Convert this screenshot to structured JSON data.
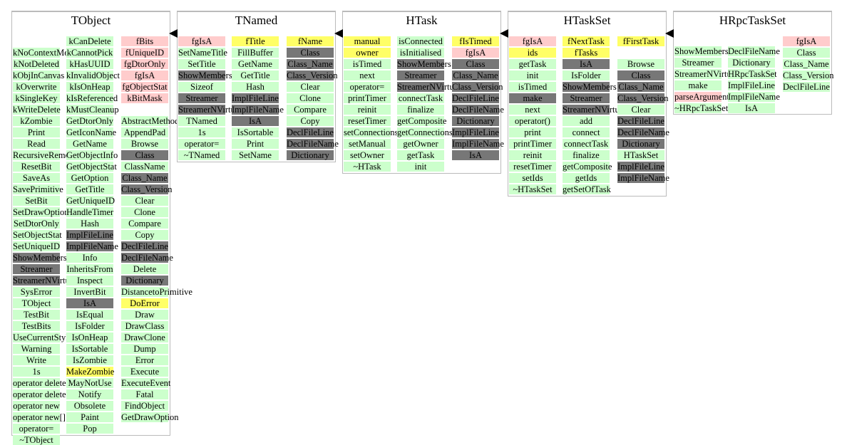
{
  "classes": [
    {
      "name": "TObject",
      "columns": [
        {
          "type": "g",
          "items": [
            "kNoContextMenu",
            "kNotDeleted",
            "kObjInCanvas",
            "kOverwrite",
            "kSingleKey",
            "kWriteDelete",
            "kZombie",
            "Print",
            "Read",
            "RecursiveRemove",
            "ResetBit",
            "SaveAs",
            "SavePrimitive",
            "SetBit",
            "SetDrawOption",
            "SetDtorOnly",
            "SetObjectStat",
            "SetUniqueID",
            {
              "t": "ShowMembers",
              "d": 1
            },
            {
              "t": "Streamer",
              "d": 1
            },
            {
              "t": "StreamerNVirtual",
              "d": 1
            },
            "SysError",
            "TObject",
            "TestBit",
            "TestBits",
            "UseCurrentStyle",
            "Warning",
            "Write",
            "1s",
            "operator delete",
            "operator delete[]",
            "operator new",
            "operator new[]",
            "operator=",
            "~TObject"
          ]
        },
        {
          "type": "g",
          "items": [
            "kCanDelete",
            "kCannotPick",
            "kHasUUID",
            "kInvalidObject",
            "kIsOnHeap",
            "kIsReferenced",
            "kMustCleanup",
            "GetDtorOnly",
            "GetIconName",
            "GetName",
            "GetObjectInfo",
            "GetObjectStat",
            "GetOption",
            "GetTitle",
            "GetUniqueID",
            "HandleTimer",
            "Hash",
            {
              "t": "ImplFileLine",
              "d": 1
            },
            {
              "t": "ImplFileName",
              "d": 1
            },
            "Info",
            "InheritsFrom",
            "Inspect",
            "InvertBit",
            {
              "t": "IsA",
              "d": 1
            },
            "IsEqual",
            "IsFolder",
            "IsOnHeap",
            "IsSortable",
            "IsZombie",
            {
              "t": "MakeZombie",
              "c": "y"
            },
            "MayNotUse",
            "Notify",
            "Obsolete",
            "Paint",
            "Pop"
          ]
        },
        {
          "type": "g",
          "items": [
            {
              "t": "fBits",
              "c": "p"
            },
            {
              "t": "fUniqueID",
              "c": "p"
            },
            {
              "t": "fgDtorOnly",
              "c": "p"
            },
            {
              "t": "fgIsA",
              "c": "p"
            },
            {
              "t": "fgObjectStat",
              "c": "p"
            },
            {
              "t": "kBitMask",
              "c": "p"
            },
            {
              "t": "",
              "c": "none"
            },
            "AbstractMethod",
            "AppendPad",
            "Browse",
            {
              "t": "Class",
              "d": 1
            },
            "ClassName",
            {
              "t": "Class_Name",
              "d": 1
            },
            {
              "t": "Class_Version",
              "d": 1
            },
            "Clear",
            "Clone",
            "Compare",
            "Copy",
            {
              "t": "DeclFileLine",
              "d": 1
            },
            {
              "t": "DeclFileName",
              "d": 1
            },
            "Delete",
            {
              "t": "Dictionary",
              "d": 1
            },
            "DistancetoPrimitive",
            {
              "t": "DoError",
              "c": "y"
            },
            "Draw",
            "DrawClass",
            "DrawClone",
            "Dump",
            "Error",
            "Execute",
            "ExecuteEvent",
            "Fatal",
            "FindObject",
            "GetDrawOption"
          ]
        }
      ]
    },
    {
      "name": "TNamed",
      "columns": [
        {
          "type": "g",
          "items": [
            {
              "t": "fgIsA",
              "c": "p"
            },
            "SetNameTitle",
            "SetTitle",
            {
              "t": "ShowMembers",
              "d": 1
            },
            "Sizeof",
            {
              "t": "Streamer",
              "d": 1
            },
            {
              "t": "StreamerNVirtual",
              "d": 1
            },
            "TNamed",
            "1s",
            "operator=",
            "~TNamed"
          ]
        },
        {
          "type": "g",
          "items": [
            {
              "t": "fTitle",
              "c": "y"
            },
            "FillBuffer",
            "GetName",
            "GetTitle",
            "Hash",
            {
              "t": "ImplFileLine",
              "d": 1
            },
            {
              "t": "ImplFileName",
              "d": 1
            },
            {
              "t": "IsA",
              "d": 1
            },
            "IsSortable",
            "Print",
            "SetName"
          ]
        },
        {
          "type": "g",
          "items": [
            {
              "t": "fName",
              "c": "y"
            },
            {
              "t": "Class",
              "d": 1
            },
            {
              "t": "Class_Name",
              "d": 1
            },
            {
              "t": "Class_Version",
              "d": 1
            },
            "Clear",
            "Clone",
            "Compare",
            "Copy",
            {
              "t": "DeclFileLine",
              "d": 1
            },
            {
              "t": "DeclFileName",
              "d": 1
            },
            {
              "t": "Dictionary",
              "d": 1
            }
          ]
        }
      ]
    },
    {
      "name": "HTask",
      "columns": [
        {
          "type": "g",
          "items": [
            {
              "t": "manual",
              "c": "y"
            },
            {
              "t": "owner",
              "c": "y"
            },
            "isTimed",
            "next",
            "operator=",
            "printTimer",
            "reinit",
            "resetTimer",
            "setConnections",
            "setManual",
            "setOwner",
            "~HTask"
          ]
        },
        {
          "type": "g",
          "items": [
            "isConnected",
            "isInitialised",
            {
              "t": "ShowMembers",
              "d": 1
            },
            {
              "t": "Streamer",
              "d": 1
            },
            {
              "t": "StreamerNVirtual",
              "d": 1
            },
            "connectTask",
            "finalize",
            "getComposite",
            "getConnections",
            "getOwner",
            "getTask",
            "init"
          ]
        },
        {
          "type": "g",
          "items": [
            {
              "t": "fIsTimed",
              "c": "y"
            },
            {
              "t": "fgIsA",
              "c": "p"
            },
            {
              "t": "Class",
              "d": 1
            },
            {
              "t": "Class_Name",
              "d": 1
            },
            {
              "t": "Class_Version",
              "d": 1
            },
            {
              "t": "DeclFileLine",
              "d": 1
            },
            {
              "t": "DeclFileName",
              "d": 1
            },
            {
              "t": "Dictionary",
              "d": 1
            },
            {
              "t": "ImplFileLine",
              "d": 1
            },
            {
              "t": "ImplFileName",
              "d": 1
            },
            {
              "t": "IsA",
              "d": 1
            }
          ]
        }
      ]
    },
    {
      "name": "HTaskSet",
      "columns": [
        {
          "type": "g",
          "items": [
            {
              "t": "fgIsA",
              "c": "p"
            },
            {
              "t": "ids",
              "c": "y"
            },
            "getTask",
            "init",
            "isTimed",
            {
              "t": "make",
              "d": 1
            },
            "next",
            "operator()",
            "print",
            "printTimer",
            "reinit",
            "resetTimer",
            "setIds",
            "~HTaskSet"
          ]
        },
        {
          "type": "g",
          "items": [
            {
              "t": "fNextTask",
              "c": "y"
            },
            {
              "t": "fTasks",
              "c": "y"
            },
            {
              "t": "IsA",
              "d": 1
            },
            "IsFolder",
            {
              "t": "ShowMembers",
              "d": 1
            },
            {
              "t": "Streamer",
              "d": 1
            },
            {
              "t": "StreamerNVirtual",
              "d": 1
            },
            "add",
            "connect",
            "connectTask",
            "finalize",
            "getComposite",
            "getIds",
            "getSetOfTask"
          ]
        },
        {
          "type": "g",
          "items": [
            {
              "t": "fFirstTask",
              "c": "y"
            },
            {
              "t": "",
              "c": "none"
            },
            "Browse",
            {
              "t": "Class",
              "d": 1
            },
            {
              "t": "Class_Name",
              "d": 1
            },
            {
              "t": "Class_Version",
              "d": 1
            },
            "Clear",
            {
              "t": "DeclFileLine",
              "d": 1
            },
            {
              "t": "DeclFileName",
              "d": 1
            },
            {
              "t": "Dictionary",
              "d": 1
            },
            "HTaskSet",
            {
              "t": "ImplFileLine",
              "d": 1
            },
            {
              "t": "ImplFileName",
              "d": 1
            }
          ]
        }
      ]
    },
    {
      "name": "HRpcTaskSet",
      "columns": [
        {
          "type": "g",
          "items": [
            "ShowMembers",
            "Streamer",
            "StreamerNVirtual",
            "make",
            {
              "t": "parseArguments",
              "c": "p"
            },
            "~HRpcTaskSet"
          ]
        },
        {
          "type": "g",
          "items": [
            "DeclFileName",
            "Dictionary",
            "HRpcTaskSet",
            "ImplFileLine",
            "ImplFileName",
            "IsA"
          ]
        },
        {
          "type": "g",
          "items": [
            {
              "t": "fgIsA",
              "c": "p"
            },
            "Class",
            "Class_Name",
            "Class_Version",
            "DeclFileLine"
          ]
        }
      ]
    }
  ],
  "inheritance": [
    {
      "from": "TNamed",
      "to": "TObject"
    },
    {
      "from": "HTask",
      "to": "TNamed"
    },
    {
      "from": "HTaskSet",
      "to": "HTask"
    },
    {
      "from": "HRpcTaskSet",
      "to": "HTaskSet"
    }
  ],
  "colors": {
    "public": "#ccffcc",
    "protected": "#ffff66",
    "private": "#ffcccc",
    "inherited": "#777777"
  }
}
